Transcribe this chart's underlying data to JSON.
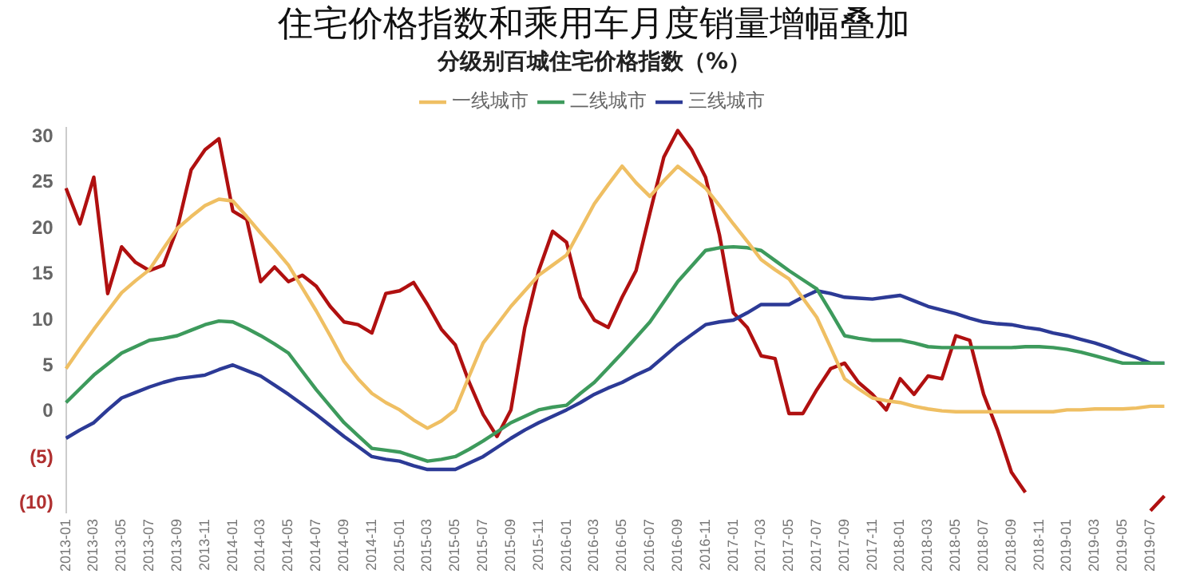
{
  "chart_data": {
    "type": "line",
    "title": "住宅价格指数和乘用车月度销量增幅叠加",
    "subtitle": "分级别百城住宅价格指数（%）",
    "categories": [
      "2013-01",
      null,
      "2013-03",
      null,
      "2013-05",
      null,
      "2013-07",
      null,
      "2013-09",
      null,
      "2013-11",
      null,
      "2014-01",
      null,
      "2014-03",
      null,
      "2014-05",
      null,
      "2014-07",
      null,
      "2014-09",
      null,
      "2014-11",
      null,
      "2015-01",
      null,
      "2015-03",
      null,
      "2015-05",
      null,
      "2015-07",
      null,
      "2015-09",
      null,
      "2015-11",
      null,
      "2016-01",
      null,
      "2016-03",
      null,
      "2016-05",
      null,
      "2016-07",
      null,
      "2016-09",
      null,
      "2016-11",
      null,
      "2017-01",
      null,
      "2017-03",
      null,
      "2017-05",
      null,
      "2017-07",
      null,
      "2017-09",
      null,
      "2017-11",
      null,
      "2018-01",
      null,
      "2018-03",
      null,
      "2018-05",
      null,
      "2018-07",
      null,
      "2018-09",
      null,
      "2018-11",
      null,
      "2019-01",
      null,
      "2019-03",
      null,
      "2019-05",
      null,
      "2019-07",
      null
    ],
    "series": [
      {
        "name": "一线城市",
        "color": "#efbf63",
        "values": [
          4.7,
          6.9,
          9,
          11,
          13,
          14.3,
          15.5,
          17.8,
          20,
          21.3,
          22.5,
          23.2,
          23,
          21.3,
          19.5,
          17.8,
          16,
          13.5,
          11,
          8.3,
          5.5,
          3.6,
          2,
          1,
          0.2,
          -0.9,
          -1.8,
          -1,
          0.2,
          3.9,
          7.5,
          9.5,
          11.5,
          13.2,
          14.9,
          16,
          17.1,
          19.9,
          22.7,
          24.8,
          26.8,
          25,
          23.5,
          25.2,
          26.8,
          25.6,
          24.4,
          22.5,
          20.5,
          18.6,
          16.6,
          15.5,
          14.5,
          12.4,
          10.3,
          7,
          3.6,
          2.5,
          1.5,
          1.2,
          1,
          0.6,
          0.3,
          0.1,
          0,
          0,
          0,
          0,
          0,
          0,
          0,
          0,
          0.2,
          0.2,
          0.3,
          0.3,
          0.3,
          0.4,
          0.6,
          0.6
        ]
      },
      {
        "name": "二线城市",
        "color": "#3d9a5c",
        "values": [
          1,
          2.5,
          4,
          5.2,
          6.4,
          7.1,
          7.8,
          8,
          8.3,
          8.9,
          9.5,
          9.9,
          9.8,
          9.1,
          8.3,
          7.4,
          6.4,
          4.4,
          2.4,
          0.6,
          -1.2,
          -2.6,
          -4,
          -4.2,
          -4.4,
          -4.9,
          -5.4,
          -5.2,
          -4.9,
          -4.1,
          -3.2,
          -2.2,
          -1.2,
          -0.5,
          0.2,
          0.5,
          0.7,
          2,
          3.2,
          4.8,
          6.4,
          8.1,
          9.8,
          12,
          14.2,
          15.9,
          17.6,
          17.9,
          18,
          17.9,
          17.6,
          16.5,
          15.4,
          14.4,
          13.4,
          10.9,
          8.3,
          8,
          7.8,
          7.8,
          7.8,
          7.5,
          7.1,
          7,
          7,
          7,
          7,
          7,
          7,
          7.1,
          7.1,
          7,
          6.8,
          6.5,
          6.1,
          5.7,
          5.3,
          5.3,
          5.3,
          5.3
        ]
      },
      {
        "name": "三线城市",
        "color": "#2c3a96",
        "values": [
          -2.9,
          -2,
          -1.2,
          0.2,
          1.5,
          2.1,
          2.7,
          3.2,
          3.6,
          3.8,
          4,
          4.6,
          5.1,
          4.5,
          3.9,
          2.9,
          1.9,
          0.8,
          -0.3,
          -1.5,
          -2.7,
          -3.8,
          -4.9,
          -5.2,
          -5.4,
          -5.9,
          -6.3,
          -6.3,
          -6.3,
          -5.6,
          -4.9,
          -3.9,
          -2.9,
          -2,
          -1.2,
          -0.5,
          0.2,
          1,
          1.9,
          2.6,
          3.2,
          4,
          4.7,
          6,
          7.3,
          8.4,
          9.5,
          9.8,
          10,
          10.8,
          11.7,
          11.7,
          11.7,
          12.5,
          13.2,
          12.9,
          12.5,
          12.4,
          12.3,
          12.5,
          12.7,
          12.1,
          11.5,
          11.1,
          10.7,
          10.2,
          9.8,
          9.6,
          9.5,
          9.2,
          9,
          8.6,
          8.3,
          7.9,
          7.5,
          7,
          6.4,
          5.9,
          5.3,
          5.3
        ]
      },
      {
        "color": "#b01010",
        "values": [
          24.4,
          20.5,
          25.6,
          12.9,
          18,
          16.3,
          15.4,
          16,
          20,
          26.4,
          28.6,
          29.8,
          21.9,
          21,
          14.2,
          15.8,
          14.2,
          14.9,
          13.7,
          11.5,
          9.8,
          9.5,
          8.6,
          12.9,
          13.2,
          14.1,
          11.7,
          9,
          7.3,
          3.2,
          -0.3,
          -2.7,
          0.2,
          9.2,
          15.4,
          19.7,
          18.5,
          12.5,
          10,
          9.2,
          12.5,
          15.4,
          21.7,
          27.8,
          30.7,
          28.6,
          25.6,
          19.3,
          10.8,
          9.2,
          6.1,
          5.8,
          -0.2,
          -0.2,
          2.4,
          4.7,
          5.3,
          3.2,
          1.9,
          0.2,
          3.6,
          1.9,
          3.9,
          3.6,
          8.3,
          7.8,
          1.9,
          -2,
          -6.6,
          -8.8,
          null,
          null,
          null,
          null,
          null,
          null,
          null,
          null,
          -10.8,
          -9.2
        ]
      }
    ],
    "ylim": [
      -11,
      31
    ],
    "yticks": [
      {
        "value": -10,
        "label": "(10)"
      },
      {
        "value": -5,
        "label": "(5)"
      },
      0,
      5,
      10,
      15,
      20,
      25,
      30
    ],
    "grid": false,
    "legend": "top",
    "marker": "none",
    "line_style": "solid"
  }
}
